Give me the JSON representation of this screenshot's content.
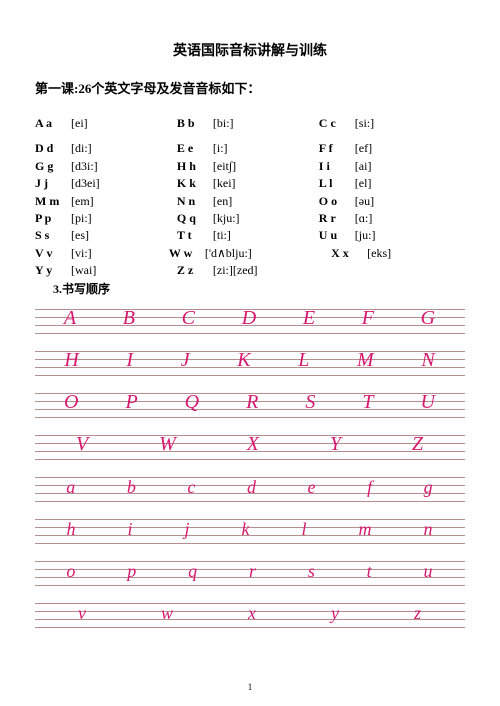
{
  "title": "英语国际音标讲解与训练",
  "subtitle": "第一课:26个英文字母及发音音标如下：",
  "rows": [
    [
      {
        "l": "A a",
        "p": "[ei]"
      },
      {
        "l": "B b",
        "p": "[bi:]"
      },
      {
        "l": "C c",
        "p": "[si:]"
      }
    ],
    [
      {
        "l": "D d",
        "p": "[di:]"
      },
      {
        "l": "E e",
        "p": "[i:]"
      },
      {
        "l": "F f",
        "p": "[ef]"
      }
    ],
    [
      {
        "l": "G g",
        "p": "[d3i:]"
      },
      {
        "l": "H h",
        "p": "[eit∫]"
      },
      {
        "l": "I i",
        "p": "[ai]"
      }
    ],
    [
      {
        "l": "J j",
        "p": "[d3ei]"
      },
      {
        "l": "K k",
        "p": "[kei]"
      },
      {
        "l": "L l",
        "p": "[el]"
      }
    ],
    [
      {
        "l": "M m",
        "p": "[em]"
      },
      {
        "l": "N n",
        "p": "[en]"
      },
      {
        "l": "O o",
        "p": "[əu]"
      }
    ],
    [
      {
        "l": "P p",
        "p": "[pi:]"
      },
      {
        "l": "Q q",
        "p": "[kju:]"
      },
      {
        "l": "R r",
        "p": "[ɑ:]"
      }
    ],
    [
      {
        "l": "S s",
        "p": "[es]"
      },
      {
        "l": "T t",
        "p": "[ti:]"
      },
      {
        "l": "U u",
        "p": "[ju:]"
      }
    ],
    [
      {
        "l": "V v",
        "p": "[vi:]"
      },
      {
        "l": "W w",
        "p": "['d∧blju:]",
        "wide": true
      },
      {
        "l": "X x",
        "p": "[eks]"
      }
    ],
    [
      {
        "l": "Y y",
        "p": "[wai]"
      },
      {
        "l": "Z z",
        "p": "[zi:][zed]"
      }
    ]
  ],
  "note": "3.书写顺序",
  "staffs": [
    {
      "letters": [
        "A",
        "B",
        "C",
        "D",
        "E",
        "F",
        "G"
      ],
      "cls": ""
    },
    {
      "letters": [
        "H",
        "I",
        "J",
        "K",
        "L",
        "M",
        "N"
      ],
      "cls": ""
    },
    {
      "letters": [
        "O",
        "P",
        "Q",
        "R",
        "S",
        "T",
        "U"
      ],
      "cls": ""
    },
    {
      "letters": [
        "V",
        "W",
        "X",
        "Y",
        "Z"
      ],
      "cls": ""
    },
    {
      "letters": [
        "a",
        "b",
        "c",
        "d",
        "e",
        "f",
        "g"
      ],
      "cls": "lower"
    },
    {
      "letters": [
        "h",
        "i",
        "j",
        "k",
        "l",
        "m",
        "n"
      ],
      "cls": "lower"
    },
    {
      "letters": [
        "o",
        "p",
        "q",
        "r",
        "s",
        "t",
        "u"
      ],
      "cls": "lower"
    },
    {
      "letters": [
        "v",
        "w",
        "x",
        "y",
        "z"
      ],
      "cls": "lower"
    }
  ],
  "pagenum": "1",
  "ink_color": "#d6186f",
  "rule_color": "rgba(120,50,50,0.55)"
}
